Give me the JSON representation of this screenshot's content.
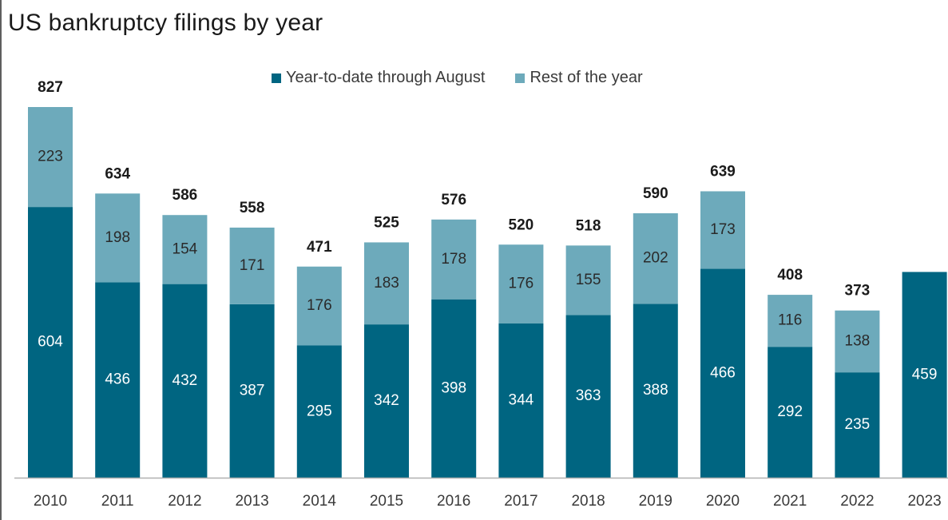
{
  "title": "US bankruptcy filings by year",
  "colors": {
    "ytd": "#006581",
    "rest": "#6daabb",
    "axis": "#b0b0b0"
  },
  "chart_data": {
    "type": "bar",
    "stacked": true,
    "title": "US bankruptcy filings by year",
    "categories": [
      "2010",
      "2011",
      "2012",
      "2013",
      "2014",
      "2015",
      "2016",
      "2017",
      "2018",
      "2019",
      "2020",
      "2021",
      "2022",
      "2023"
    ],
    "series": [
      {
        "name": "Year-to-date through August",
        "values": [
          604,
          436,
          432,
          387,
          295,
          342,
          398,
          344,
          363,
          388,
          466,
          292,
          235,
          459
        ]
      },
      {
        "name": "Rest of the year",
        "values": [
          223,
          198,
          154,
          171,
          176,
          183,
          178,
          176,
          155,
          202,
          173,
          116,
          138,
          null
        ]
      }
    ],
    "totals": [
      827,
      634,
      586,
      558,
      471,
      525,
      576,
      520,
      518,
      590,
      639,
      408,
      373,
      null
    ],
    "legend_position": "top-center",
    "grid": false,
    "ylim": [
      0,
      827
    ]
  }
}
